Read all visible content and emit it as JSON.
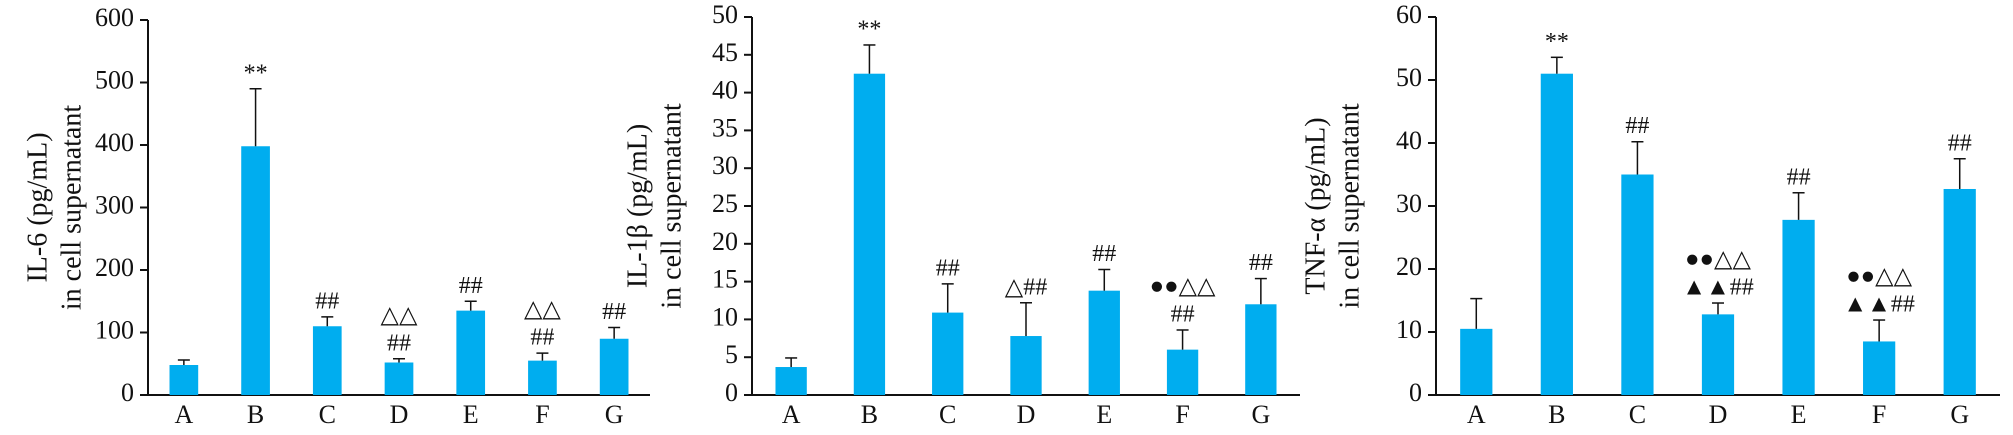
{
  "chart_data": [
    {
      "type": "bar",
      "ylabel": [
        "IL-6 (pg/mL)",
        "in cell supernatant"
      ],
      "color": "#00adef",
      "categories": [
        "A",
        "B",
        "C",
        "D",
        "E",
        "F",
        "G"
      ],
      "values": [
        48,
        398,
        110,
        52,
        135,
        55,
        90
      ],
      "errors": [
        8,
        92,
        15,
        6,
        15,
        12,
        18
      ],
      "annotations": [
        null,
        [
          "**"
        ],
        [
          "##"
        ],
        [
          "△△",
          "##"
        ],
        [
          "##"
        ],
        [
          "△△",
          "##"
        ],
        [
          "##"
        ]
      ],
      "ylim": [
        0,
        600
      ],
      "yticks": [
        0,
        100,
        200,
        300,
        400,
        500,
        600
      ]
    },
    {
      "type": "bar",
      "ylabel": [
        "IL-1β (pg/mL)",
        "in cell supernatant"
      ],
      "color": "#00adef",
      "categories": [
        "A",
        "B",
        "C",
        "D",
        "E",
        "F",
        "G"
      ],
      "values": [
        3.7,
        42.5,
        10.9,
        7.8,
        13.8,
        6,
        12
      ],
      "errors": [
        1.2,
        3.8,
        3.8,
        4.4,
        2.8,
        2.6,
        3.4
      ],
      "annotations": [
        null,
        [
          "**"
        ],
        [
          "##"
        ],
        [
          "△##"
        ],
        [
          "##"
        ],
        [
          "●●△△",
          "##"
        ],
        [
          "##"
        ]
      ],
      "ylim": [
        0,
        50
      ],
      "yticks": [
        0,
        5,
        10,
        15,
        20,
        25,
        30,
        35,
        40,
        45,
        50
      ]
    },
    {
      "type": "bar",
      "ylabel": [
        "TNF-α (pg/mL)",
        "in cell supernatant"
      ],
      "color": "#00adef",
      "categories": [
        "A",
        "B",
        "C",
        "D",
        "E",
        "F",
        "G"
      ],
      "values": [
        10.5,
        51,
        35,
        12.8,
        27.8,
        8.5,
        32.7
      ],
      "errors": [
        4.8,
        2.6,
        5.2,
        1.8,
        4.3,
        3.4,
        4.8
      ],
      "annotations": [
        null,
        [
          "**"
        ],
        [
          "##"
        ],
        [
          "●●△△",
          "▲▲##"
        ],
        [
          "##"
        ],
        [
          "●●△△",
          "▲▲##"
        ],
        [
          "##"
        ]
      ],
      "ylim": [
        0,
        60
      ],
      "yticks": [
        0,
        10,
        20,
        30,
        40,
        50,
        60
      ]
    }
  ]
}
